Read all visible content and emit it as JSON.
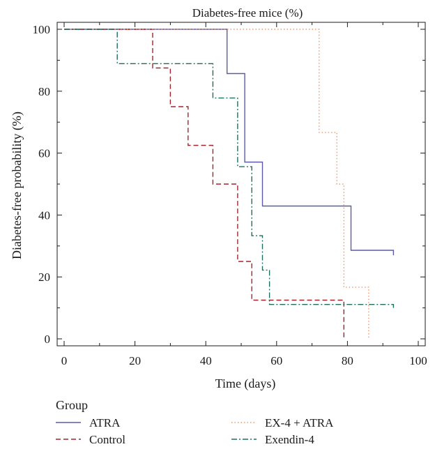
{
  "chart_data": {
    "type": "line",
    "title": "Diabetes-free mice (%)",
    "xlabel": "Time (days)",
    "ylabel": "Diabetes-free probability (%)",
    "xlim": [
      0,
      100
    ],
    "ylim": [
      0,
      100
    ],
    "x_ticks": [
      0,
      20,
      40,
      60,
      80,
      100
    ],
    "y_ticks": [
      0,
      20,
      40,
      60,
      80,
      100
    ],
    "grid": false,
    "legend_title": "Group",
    "legend_position": "bottom",
    "series": [
      {
        "name": "ATRA",
        "color": "#5b5aa8",
        "dash": "solid",
        "points": [
          [
            0,
            100
          ],
          [
            46,
            100
          ],
          [
            46,
            85.7
          ],
          [
            51,
            85.7
          ],
          [
            51,
            57.1
          ],
          [
            56,
            57.1
          ],
          [
            56,
            42.9
          ],
          [
            81,
            42.9
          ],
          [
            81,
            28.6
          ],
          [
            93,
            28.6
          ],
          [
            93,
            27
          ]
        ]
      },
      {
        "name": "Control",
        "color": "#a3242c",
        "dash": "dashed",
        "points": [
          [
            0,
            100
          ],
          [
            25,
            100
          ],
          [
            25,
            87.5
          ],
          [
            30,
            87.5
          ],
          [
            30,
            75
          ],
          [
            35,
            75
          ],
          [
            35,
            62.5
          ],
          [
            42,
            62.5
          ],
          [
            42,
            50
          ],
          [
            49,
            50
          ],
          [
            49,
            25
          ],
          [
            53,
            25
          ],
          [
            53,
            12.5
          ],
          [
            79,
            12.5
          ],
          [
            79,
            0
          ]
        ]
      },
      {
        "name": "EX-4 + ATRA",
        "color": "#f4956a",
        "dash": "dotted",
        "points": [
          [
            0,
            100
          ],
          [
            72,
            100
          ],
          [
            72,
            66.7
          ],
          [
            77,
            66.7
          ],
          [
            77,
            50
          ],
          [
            79,
            50
          ],
          [
            79,
            16.7
          ],
          [
            86,
            16.7
          ],
          [
            86,
            0
          ]
        ]
      },
      {
        "name": "Exendin-4",
        "color": "#1e6e5e",
        "dash": "dashdot",
        "points": [
          [
            0,
            100
          ],
          [
            15,
            100
          ],
          [
            15,
            88.9
          ],
          [
            42,
            88.9
          ],
          [
            42,
            77.8
          ],
          [
            49,
            77.8
          ],
          [
            49,
            55.6
          ],
          [
            53,
            55.6
          ],
          [
            53,
            33.3
          ],
          [
            56,
            33.3
          ],
          [
            56,
            22.2
          ],
          [
            58,
            22.2
          ],
          [
            58,
            11.1
          ],
          [
            93,
            11.1
          ],
          [
            93,
            9.5
          ]
        ]
      }
    ]
  }
}
